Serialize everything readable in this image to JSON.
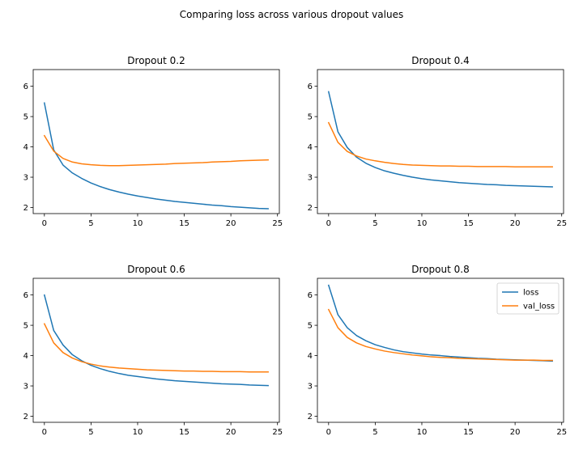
{
  "figure": {
    "title": "Comparing loss across various dropout values"
  },
  "colors": {
    "loss": "#1f77b4",
    "val_loss": "#ff7f0e"
  },
  "chart_data": [
    {
      "type": "line",
      "title": "Dropout 0.2",
      "xlabel": "",
      "ylabel": "",
      "xlim": [
        -1.2,
        25.2
      ],
      "ylim": [
        1.8,
        6.55
      ],
      "xticks": [
        0,
        5,
        10,
        15,
        20,
        25
      ],
      "yticks": [
        2,
        3,
        4,
        5,
        6
      ],
      "grid": false,
      "legend": null,
      "x": [
        0,
        1,
        2,
        3,
        4,
        5,
        6,
        7,
        8,
        9,
        10,
        11,
        12,
        13,
        14,
        15,
        16,
        17,
        18,
        19,
        20,
        21,
        22,
        23,
        24
      ],
      "series": [
        {
          "name": "loss",
          "values": [
            5.45,
            3.9,
            3.4,
            3.14,
            2.96,
            2.81,
            2.69,
            2.59,
            2.51,
            2.44,
            2.38,
            2.33,
            2.28,
            2.24,
            2.2,
            2.17,
            2.14,
            2.11,
            2.08,
            2.06,
            2.03,
            2.01,
            1.99,
            1.97,
            1.96
          ]
        },
        {
          "name": "val_loss",
          "values": [
            4.37,
            3.86,
            3.62,
            3.5,
            3.44,
            3.41,
            3.39,
            3.38,
            3.38,
            3.39,
            3.4,
            3.41,
            3.42,
            3.43,
            3.45,
            3.46,
            3.47,
            3.48,
            3.5,
            3.51,
            3.52,
            3.54,
            3.55,
            3.56,
            3.57
          ]
        }
      ]
    },
    {
      "type": "line",
      "title": "Dropout 0.4",
      "xlabel": "",
      "ylabel": "",
      "xlim": [
        -1.2,
        25.2
      ],
      "ylim": [
        1.8,
        6.55
      ],
      "xticks": [
        0,
        5,
        10,
        15,
        20,
        25
      ],
      "yticks": [
        2,
        3,
        4,
        5,
        6
      ],
      "grid": false,
      "legend": null,
      "x": [
        0,
        1,
        2,
        3,
        4,
        5,
        6,
        7,
        8,
        9,
        10,
        11,
        12,
        13,
        14,
        15,
        16,
        17,
        18,
        19,
        20,
        21,
        22,
        23,
        24
      ],
      "series": [
        {
          "name": "loss",
          "values": [
            5.82,
            4.5,
            3.98,
            3.66,
            3.46,
            3.32,
            3.21,
            3.13,
            3.06,
            3.0,
            2.95,
            2.91,
            2.88,
            2.85,
            2.82,
            2.8,
            2.78,
            2.76,
            2.75,
            2.73,
            2.72,
            2.71,
            2.7,
            2.69,
            2.68
          ]
        },
        {
          "name": "val_loss",
          "values": [
            4.8,
            4.15,
            3.85,
            3.7,
            3.6,
            3.54,
            3.49,
            3.45,
            3.42,
            3.4,
            3.39,
            3.38,
            3.37,
            3.37,
            3.36,
            3.36,
            3.35,
            3.35,
            3.35,
            3.35,
            3.34,
            3.34,
            3.34,
            3.34,
            3.34
          ]
        }
      ]
    },
    {
      "type": "line",
      "title": "Dropout 0.6",
      "xlabel": "",
      "ylabel": "",
      "xlim": [
        -1.2,
        25.2
      ],
      "ylim": [
        1.8,
        6.55
      ],
      "xticks": [
        0,
        5,
        10,
        15,
        20,
        25
      ],
      "yticks": [
        2,
        3,
        4,
        5,
        6
      ],
      "grid": false,
      "legend": null,
      "x": [
        0,
        1,
        2,
        3,
        4,
        5,
        6,
        7,
        8,
        9,
        10,
        11,
        12,
        13,
        14,
        15,
        16,
        17,
        18,
        19,
        20,
        21,
        22,
        23,
        24
      ],
      "series": [
        {
          "name": "loss",
          "values": [
            6.0,
            4.83,
            4.35,
            4.03,
            3.83,
            3.68,
            3.57,
            3.48,
            3.41,
            3.35,
            3.31,
            3.27,
            3.23,
            3.2,
            3.17,
            3.15,
            3.13,
            3.11,
            3.09,
            3.07,
            3.06,
            3.05,
            3.03,
            3.02,
            3.01
          ]
        },
        {
          "name": "val_loss",
          "values": [
            5.05,
            4.42,
            4.1,
            3.92,
            3.8,
            3.72,
            3.66,
            3.62,
            3.59,
            3.57,
            3.55,
            3.53,
            3.52,
            3.51,
            3.5,
            3.49,
            3.49,
            3.48,
            3.48,
            3.47,
            3.47,
            3.47,
            3.46,
            3.46,
            3.46
          ]
        }
      ]
    },
    {
      "type": "line",
      "title": "Dropout 0.8",
      "xlabel": "",
      "ylabel": "",
      "xlim": [
        -1.2,
        25.2
      ],
      "ylim": [
        1.8,
        6.55
      ],
      "xticks": [
        0,
        5,
        10,
        15,
        20,
        25
      ],
      "yticks": [
        2,
        3,
        4,
        5,
        6
      ],
      "grid": false,
      "legend": "upper right",
      "x": [
        0,
        1,
        2,
        3,
        4,
        5,
        6,
        7,
        8,
        9,
        10,
        11,
        12,
        13,
        14,
        15,
        16,
        17,
        18,
        19,
        20,
        21,
        22,
        23,
        24
      ],
      "series": [
        {
          "name": "loss",
          "values": [
            6.32,
            5.35,
            4.92,
            4.66,
            4.49,
            4.36,
            4.27,
            4.19,
            4.13,
            4.09,
            4.05,
            4.02,
            4.0,
            3.97,
            3.95,
            3.93,
            3.91,
            3.9,
            3.88,
            3.87,
            3.86,
            3.85,
            3.84,
            3.83,
            3.82
          ]
        },
        {
          "name": "val_loss",
          "values": [
            5.52,
            4.92,
            4.6,
            4.42,
            4.3,
            4.22,
            4.15,
            4.1,
            4.06,
            4.02,
            3.99,
            3.96,
            3.94,
            3.93,
            3.91,
            3.9,
            3.89,
            3.88,
            3.87,
            3.86,
            3.85,
            3.85,
            3.85,
            3.84,
            3.84
          ]
        }
      ]
    }
  ]
}
